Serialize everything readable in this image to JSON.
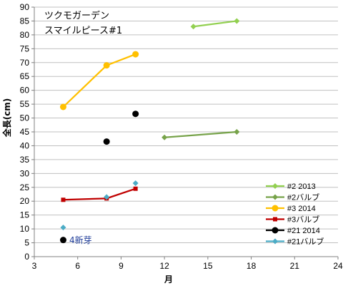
{
  "chart_data": {
    "type": "scatter",
    "title": [
      "ツクモガーデン",
      "スマイルピース#1"
    ],
    "xlabel": "月",
    "ylabel": "全長(cm)",
    "xlim": [
      3,
      24
    ],
    "ylim": [
      0,
      90
    ],
    "xticks": [
      3,
      6,
      9,
      12,
      15,
      18,
      21,
      24
    ],
    "yticks": [
      0,
      5,
      10,
      15,
      20,
      25,
      30,
      35,
      40,
      45,
      50,
      55,
      60,
      65,
      70,
      75,
      80,
      85,
      90
    ],
    "grid": true,
    "legend_position": "bottom-right",
    "series": [
      {
        "name": "#2 2013",
        "color": "#92d050",
        "marker": "diamond",
        "line": true,
        "points": [
          [
            14,
            83
          ],
          [
            17,
            85
          ]
        ]
      },
      {
        "name": "#2バルブ",
        "color": "#77a34a",
        "marker": "diamond",
        "line": true,
        "points": [
          [
            12,
            43
          ],
          [
            17,
            45
          ]
        ]
      },
      {
        "name": "#3 2014",
        "color": "#ffc000",
        "marker": "circle",
        "line": true,
        "points": [
          [
            5,
            54
          ],
          [
            8,
            69
          ],
          [
            10,
            73
          ]
        ]
      },
      {
        "name": "#3バルブ",
        "color": "#c00000",
        "marker": "square",
        "line": true,
        "points": [
          [
            5,
            20.5
          ],
          [
            8,
            21
          ],
          [
            10,
            24.5
          ]
        ]
      },
      {
        "name": "#21 2014",
        "color": "#000000",
        "marker": "circle",
        "line": false,
        "points": [
          [
            5,
            6
          ],
          [
            8,
            41.5
          ],
          [
            10,
            51.5
          ]
        ]
      },
      {
        "name": "#21バルブ",
        "color": "#4bacc6",
        "marker": "diamond",
        "line": false,
        "points": [
          [
            5,
            10.5
          ],
          [
            8,
            21.5
          ],
          [
            10,
            26.5
          ]
        ]
      }
    ],
    "annotations": [
      {
        "text": "4新芽",
        "x": 5.3,
        "y": 6
      }
    ]
  }
}
